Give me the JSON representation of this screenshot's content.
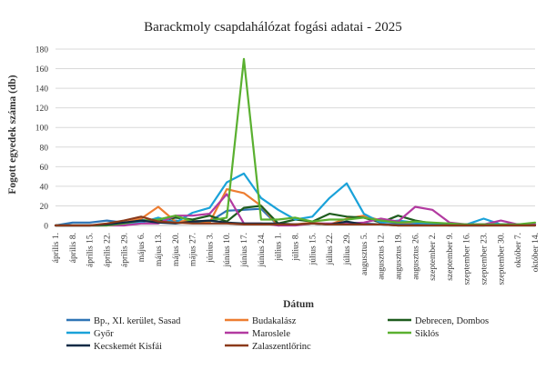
{
  "chart_data": {
    "type": "line",
    "title": "Barackmoly csapdahálózat fogási adatai - 2025",
    "xlabel": "Dátum",
    "ylabel": "Fogott egyedek száma (db)",
    "ylim": [
      0,
      180
    ],
    "yticks": [
      0,
      20,
      40,
      60,
      80,
      100,
      120,
      140,
      160,
      180
    ],
    "grid": "horizontal",
    "legend_position": "bottom",
    "categories": [
      "április 1.",
      "április 8.",
      "április 15.",
      "április 22.",
      "április 29.",
      "május 6.",
      "május 13.",
      "május 20.",
      "május 27.",
      "június 3.",
      "június 10.",
      "június 17.",
      "június 24.",
      "július 1.",
      "július 8.",
      "július 15.",
      "július 22.",
      "július 29.",
      "augusztus 5.",
      "augusztus 12.",
      "augusztus 19.",
      "augusztus 26.",
      "szeptember 2.",
      "szeptember 9.",
      "szeptember 16.",
      "szeptember 23.",
      "szeptember 30.",
      "október 7.",
      "október 14."
    ],
    "series": [
      {
        "name": "Bp., XI. kerület, Sasad",
        "color": "#2e75b6",
        "values": [
          0,
          3,
          3,
          5,
          3,
          6,
          3,
          5,
          3,
          4,
          15,
          16,
          17,
          0,
          1,
          2,
          1,
          3,
          2,
          1,
          2,
          1,
          1,
          0,
          0,
          0,
          1,
          1,
          1
        ]
      },
      {
        "name": "Budakalász",
        "color": "#ed7d31",
        "values": [
          0,
          0,
          0,
          1,
          3,
          7,
          19,
          4,
          5,
          3,
          37,
          33,
          20,
          0,
          1,
          3,
          1,
          7,
          10,
          5,
          3,
          3,
          2,
          1,
          1,
          1,
          1,
          1,
          1
        ]
      },
      {
        "name": "Debrecen, Dombos",
        "color": "#1e5c1e",
        "values": [
          0,
          0,
          0,
          0,
          2,
          5,
          4,
          8,
          6,
          10,
          4,
          18,
          20,
          2,
          6,
          4,
          12,
          9,
          8,
          3,
          10,
          5,
          2,
          1,
          1,
          1,
          1,
          1,
          1
        ]
      },
      {
        "name": "Győr",
        "color": "#1aa2d9",
        "values": [
          0,
          0,
          0,
          1,
          2,
          3,
          8,
          3,
          13,
          18,
          44,
          53,
          28,
          16,
          6,
          9,
          28,
          43,
          12,
          3,
          5,
          3,
          2,
          2,
          1,
          7,
          1,
          1,
          1
        ]
      },
      {
        "name": "Maroslele",
        "color": "#b23aa0",
        "values": [
          0,
          0,
          0,
          0,
          0,
          2,
          2,
          10,
          10,
          12,
          32,
          2,
          2,
          0,
          0,
          2,
          2,
          2,
          3,
          7,
          4,
          19,
          16,
          3,
          1,
          1,
          5,
          1,
          1
        ]
      },
      {
        "name": "Siklós",
        "color": "#5ab030",
        "values": [
          0,
          0,
          0,
          0,
          2,
          5,
          6,
          10,
          4,
          5,
          8,
          170,
          6,
          6,
          8,
          4,
          6,
          6,
          8,
          5,
          3,
          4,
          3,
          2,
          1,
          1,
          1,
          1,
          3
        ]
      },
      {
        "name": "Kecskemét Kisfái",
        "color": "#0d2a45",
        "values": [
          0,
          0,
          0,
          1,
          3,
          5,
          3,
          2,
          4,
          5,
          3,
          2,
          2,
          2,
          1,
          2,
          1,
          4,
          1,
          1,
          0,
          0,
          0,
          0,
          0,
          0,
          0,
          0,
          0
        ]
      },
      {
        "name": "Zalaszentlőrinc",
        "color": "#8b3a1a",
        "values": [
          0,
          0,
          0,
          2,
          5,
          9,
          4,
          3,
          2,
          2,
          2,
          1,
          1,
          1,
          1,
          2,
          1,
          1,
          1,
          1,
          0,
          0,
          0,
          0,
          0,
          0,
          0,
          0,
          0
        ]
      }
    ]
  }
}
